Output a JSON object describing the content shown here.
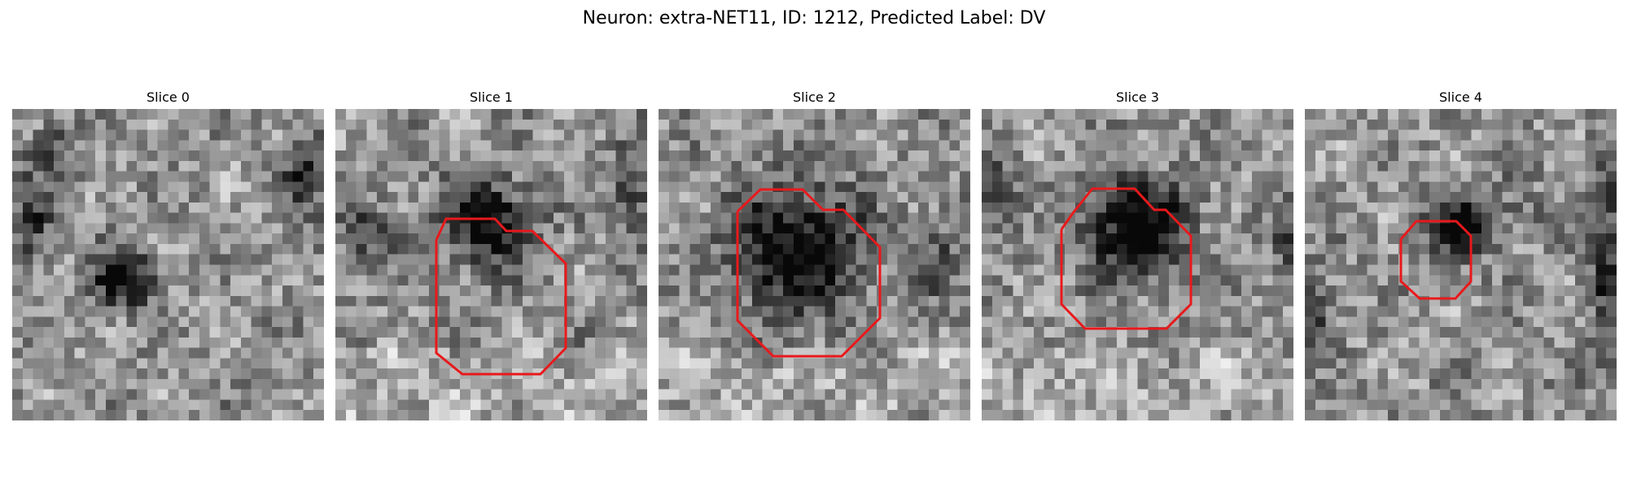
{
  "title": "Neuron: extra-NET11, ID: 1212, Predicted Label: DV",
  "colormap": "gray",
  "contour_color": "#e8191c",
  "slices": [
    {
      "label": "Slice 0",
      "has_contour": false
    },
    {
      "label": "Slice 1",
      "has_contour": true
    },
    {
      "label": "Slice 2",
      "has_contour": true
    },
    {
      "label": "Slice 3",
      "has_contour": true
    },
    {
      "label": "Slice 4",
      "has_contour": true
    }
  ]
}
